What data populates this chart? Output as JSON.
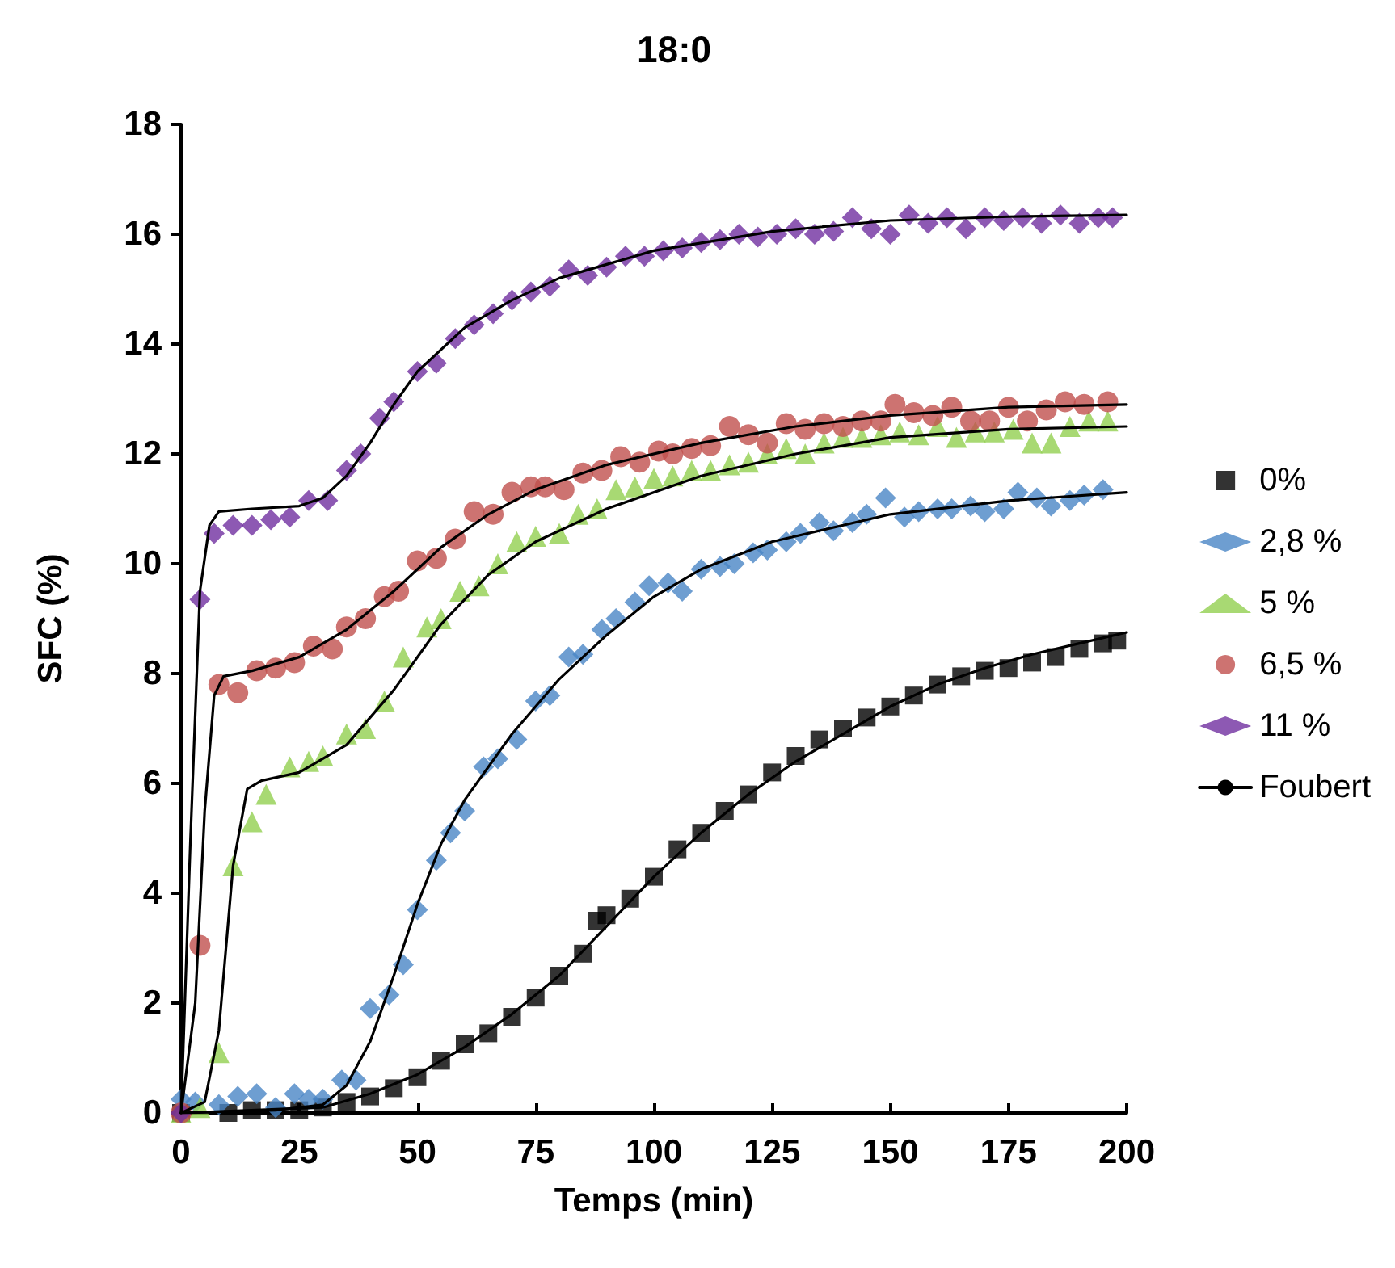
{
  "chart_data": {
    "type": "scatter",
    "title": "18:0",
    "xlabel": "Temps (min)",
    "ylabel": "SFC (%)",
    "xlim": [
      0,
      200
    ],
    "xticks": [
      0,
      25,
      50,
      75,
      100,
      125,
      150,
      175,
      200
    ],
    "ylim": [
      0,
      18
    ],
    "yticks": [
      0,
      2,
      4,
      6,
      8,
      10,
      12,
      14,
      16,
      18
    ],
    "grid": false,
    "legend": "right",
    "series": [
      {
        "name": "0%",
        "color": "#000000",
        "marker": "square",
        "x": [
          0,
          10,
          15,
          20,
          25,
          30,
          35,
          40,
          45,
          50,
          55,
          60,
          65,
          70,
          75,
          80,
          85,
          88,
          90,
          95,
          100,
          105,
          110,
          115,
          120,
          125,
          130,
          135,
          140,
          145,
          150,
          155,
          160,
          165,
          170,
          175,
          180,
          185,
          190,
          195,
          198
        ],
        "values": [
          0,
          0,
          0.05,
          0.05,
          0.05,
          0.1,
          0.2,
          0.3,
          0.45,
          0.65,
          0.95,
          1.25,
          1.45,
          1.75,
          2.1,
          2.5,
          2.9,
          3.5,
          3.6,
          3.9,
          4.3,
          4.8,
          5.1,
          5.5,
          5.8,
          6.2,
          6.5,
          6.8,
          7.0,
          7.2,
          7.4,
          7.6,
          7.8,
          7.95,
          8.05,
          8.1,
          8.2,
          8.3,
          8.45,
          8.55,
          8.6
        ]
      },
      {
        "name": "2,8 %",
        "color": "#4a86c5",
        "marker": "diamond",
        "x": [
          0,
          3,
          8,
          12,
          16,
          20,
          24,
          27,
          30,
          34,
          37,
          40,
          44,
          47,
          50,
          54,
          57,
          60,
          64,
          67,
          71,
          75,
          78,
          82,
          85,
          89,
          92,
          96,
          99,
          103,
          106,
          110,
          114,
          117,
          121,
          124,
          128,
          131,
          135,
          138,
          142,
          145,
          149,
          153,
          156,
          160,
          163,
          167,
          170,
          174,
          177,
          181,
          184,
          188,
          191,
          195
        ],
        "values": [
          0.25,
          0.2,
          0.15,
          0.3,
          0.35,
          0.1,
          0.35,
          0.25,
          0.25,
          0.6,
          0.6,
          1.9,
          2.15,
          2.7,
          3.7,
          4.6,
          5.1,
          5.5,
          6.3,
          6.45,
          6.8,
          7.5,
          7.6,
          8.3,
          8.35,
          8.8,
          9.0,
          9.3,
          9.6,
          9.65,
          9.5,
          9.9,
          9.95,
          10.0,
          10.2,
          10.25,
          10.4,
          10.55,
          10.75,
          10.6,
          10.75,
          10.9,
          11.2,
          10.85,
          10.95,
          11.0,
          11.0,
          11.05,
          10.95,
          11.0,
          11.3,
          11.2,
          11.05,
          11.15,
          11.25,
          11.35
        ]
      },
      {
        "name": "5 %",
        "color": "#92d050",
        "marker": "triangle",
        "x": [
          0,
          4,
          8,
          11,
          15,
          18,
          23,
          27,
          30,
          35,
          39,
          43,
          47,
          52,
          55,
          59,
          63,
          67,
          71,
          75,
          80,
          84,
          88,
          92,
          96,
          100,
          104,
          108,
          112,
          116,
          120,
          124,
          128,
          132,
          136,
          140,
          144,
          148,
          152,
          156,
          160,
          164,
          168,
          172,
          176,
          180,
          184,
          188,
          192,
          196
        ],
        "values": [
          0,
          0.1,
          1.1,
          4.5,
          5.3,
          5.8,
          6.3,
          6.4,
          6.5,
          6.9,
          7.0,
          7.5,
          8.3,
          8.85,
          9.0,
          9.5,
          9.6,
          10.0,
          10.4,
          10.5,
          10.55,
          10.9,
          11.0,
          11.35,
          11.4,
          11.55,
          11.6,
          11.7,
          11.7,
          11.8,
          11.85,
          12.0,
          12.1,
          12.0,
          12.2,
          12.3,
          12.3,
          12.35,
          12.4,
          12.35,
          12.5,
          12.3,
          12.4,
          12.4,
          12.45,
          12.2,
          12.2,
          12.5,
          12.6,
          12.6
        ]
      },
      {
        "name": "6,5 %",
        "color": "#c0504d",
        "marker": "circle",
        "x": [
          0,
          4,
          8,
          12,
          16,
          20,
          24,
          28,
          32,
          35,
          39,
          43,
          46,
          50,
          54,
          58,
          62,
          66,
          70,
          74,
          77,
          81,
          85,
          89,
          93,
          97,
          101,
          104,
          108,
          112,
          116,
          120,
          124,
          128,
          132,
          136,
          140,
          144,
          148,
          151,
          155,
          159,
          163,
          167,
          171,
          175,
          179,
          183,
          187,
          191,
          196
        ],
        "values": [
          0,
          3.05,
          7.8,
          7.65,
          8.05,
          8.1,
          8.2,
          8.5,
          8.45,
          8.85,
          9.0,
          9.4,
          9.5,
          10.05,
          10.1,
          10.45,
          10.95,
          10.9,
          11.3,
          11.4,
          11.4,
          11.35,
          11.65,
          11.7,
          11.95,
          11.85,
          12.05,
          12.0,
          12.1,
          12.15,
          12.5,
          12.35,
          12.2,
          12.55,
          12.45,
          12.55,
          12.5,
          12.6,
          12.6,
          12.9,
          12.75,
          12.7,
          12.85,
          12.6,
          12.6,
          12.85,
          12.6,
          12.8,
          12.95,
          12.9,
          12.95
        ]
      },
      {
        "name": "11 %",
        "color": "#7030a0",
        "marker": "diamond",
        "x": [
          0,
          4,
          7,
          11,
          15,
          19,
          23,
          27,
          31,
          35,
          38,
          42,
          45,
          50,
          54,
          58,
          62,
          66,
          70,
          74,
          78,
          82,
          86,
          90,
          94,
          98,
          102,
          106,
          110,
          114,
          118,
          122,
          126,
          130,
          134,
          138,
          142,
          146,
          150,
          154,
          158,
          162,
          166,
          170,
          174,
          178,
          182,
          186,
          190,
          194,
          197
        ],
        "values": [
          0,
          9.35,
          10.55,
          10.7,
          10.7,
          10.8,
          10.85,
          11.15,
          11.15,
          11.7,
          12.0,
          12.65,
          12.95,
          13.5,
          13.65,
          14.1,
          14.35,
          14.55,
          14.8,
          14.95,
          15.05,
          15.35,
          15.25,
          15.4,
          15.6,
          15.6,
          15.7,
          15.75,
          15.85,
          15.9,
          16.0,
          15.95,
          16.0,
          16.1,
          16.0,
          16.05,
          16.3,
          16.1,
          16.0,
          16.35,
          16.2,
          16.3,
          16.1,
          16.3,
          16.25,
          16.3,
          16.2,
          16.35,
          16.2,
          16.3,
          16.3
        ]
      },
      {
        "name": "Foubert",
        "type": "line",
        "color": "#000000",
        "marker": "none",
        "x": [
          0,
          2,
          4,
          6,
          8,
          15,
          25,
          30,
          35,
          40,
          45,
          50,
          60,
          70,
          80,
          100,
          125,
          150,
          175,
          200
        ],
        "values": [
          0,
          5,
          9.5,
          10.7,
          10.95,
          11.0,
          11.05,
          11.2,
          11.6,
          12.2,
          12.9,
          13.5,
          14.3,
          14.8,
          15.2,
          15.7,
          16.05,
          16.25,
          16.32,
          16.35
        ]
      },
      {
        "type": "line",
        "color": "#000000",
        "marker": "none",
        "x": [
          0,
          3,
          5,
          7,
          9,
          15,
          25,
          35,
          45,
          55,
          65,
          75,
          90,
          110,
          130,
          150,
          175,
          200
        ],
        "values": [
          0,
          2,
          5.5,
          7.6,
          7.95,
          8.05,
          8.3,
          8.8,
          9.5,
          10.3,
          10.9,
          11.35,
          11.8,
          12.2,
          12.5,
          12.7,
          12.85,
          12.9
        ]
      },
      {
        "type": "line",
        "color": "#000000",
        "marker": "none",
        "x": [
          0,
          5,
          8,
          11,
          14,
          17,
          25,
          35,
          45,
          55,
          65,
          75,
          90,
          110,
          130,
          150,
          175,
          200
        ],
        "values": [
          0,
          0.2,
          1.5,
          4.5,
          5.9,
          6.05,
          6.2,
          6.7,
          7.7,
          8.9,
          9.8,
          10.4,
          11.0,
          11.6,
          12.0,
          12.3,
          12.45,
          12.5
        ]
      },
      {
        "type": "line",
        "color": "#000000",
        "marker": "none",
        "x": [
          0,
          20,
          30,
          35,
          40,
          45,
          50,
          55,
          60,
          70,
          80,
          90,
          100,
          110,
          125,
          150,
          175,
          200
        ],
        "values": [
          0,
          0.05,
          0.15,
          0.5,
          1.3,
          2.5,
          3.8,
          4.9,
          5.7,
          6.9,
          7.9,
          8.7,
          9.4,
          9.9,
          10.4,
          10.9,
          11.15,
          11.3
        ]
      },
      {
        "type": "line",
        "color": "#000000",
        "marker": "none",
        "x": [
          0,
          30,
          40,
          50,
          60,
          70,
          80,
          90,
          100,
          110,
          120,
          130,
          140,
          150,
          160,
          170,
          180,
          190,
          200
        ],
        "values": [
          0,
          0.1,
          0.35,
          0.7,
          1.2,
          1.8,
          2.5,
          3.4,
          4.3,
          5.1,
          5.8,
          6.4,
          6.9,
          7.4,
          7.8,
          8.1,
          8.35,
          8.55,
          8.75
        ]
      }
    ]
  }
}
